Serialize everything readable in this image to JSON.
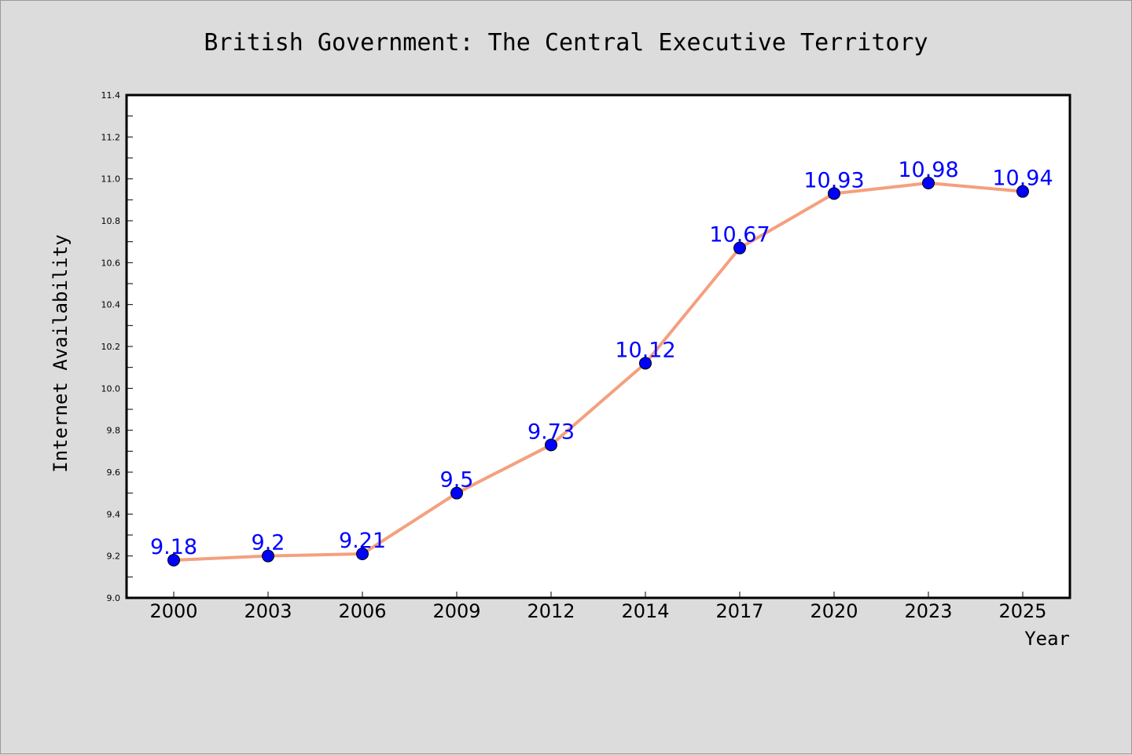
{
  "colors": {
    "line": "#f4a07e",
    "marker": "#0000ff",
    "label": "#0000ff",
    "background": "#dcdcdc",
    "plot_bg": "#ffffff"
  },
  "chart_data": {
    "type": "line",
    "title": "British Government: The Central Executive Territory",
    "xlabel": "Year",
    "ylabel": "Internet Availability",
    "categories": [
      "2000",
      "2003",
      "2006",
      "2009",
      "2012",
      "2014",
      "2017",
      "2020",
      "2023",
      "2025"
    ],
    "series": [
      {
        "values": [
          9.18,
          9.2,
          9.21,
          9.5,
          9.73,
          10.12,
          10.67,
          10.93,
          10.98,
          10.94
        ]
      }
    ],
    "data_labels": [
      "9.18",
      "9.2",
      "9.21",
      "9.5",
      "9.73",
      "10.12",
      "10.67",
      "10.93",
      "10.98",
      "10.94"
    ],
    "ylim": [
      9.0,
      11.4
    ],
    "yticks": [
      "9.0",
      "9.2",
      "9.4",
      "9.6",
      "9.8",
      "10.0",
      "10.2",
      "10.4",
      "10.6",
      "10.8",
      "11.0",
      "11.2",
      "11.4"
    ],
    "grid": false,
    "legend": "none"
  }
}
